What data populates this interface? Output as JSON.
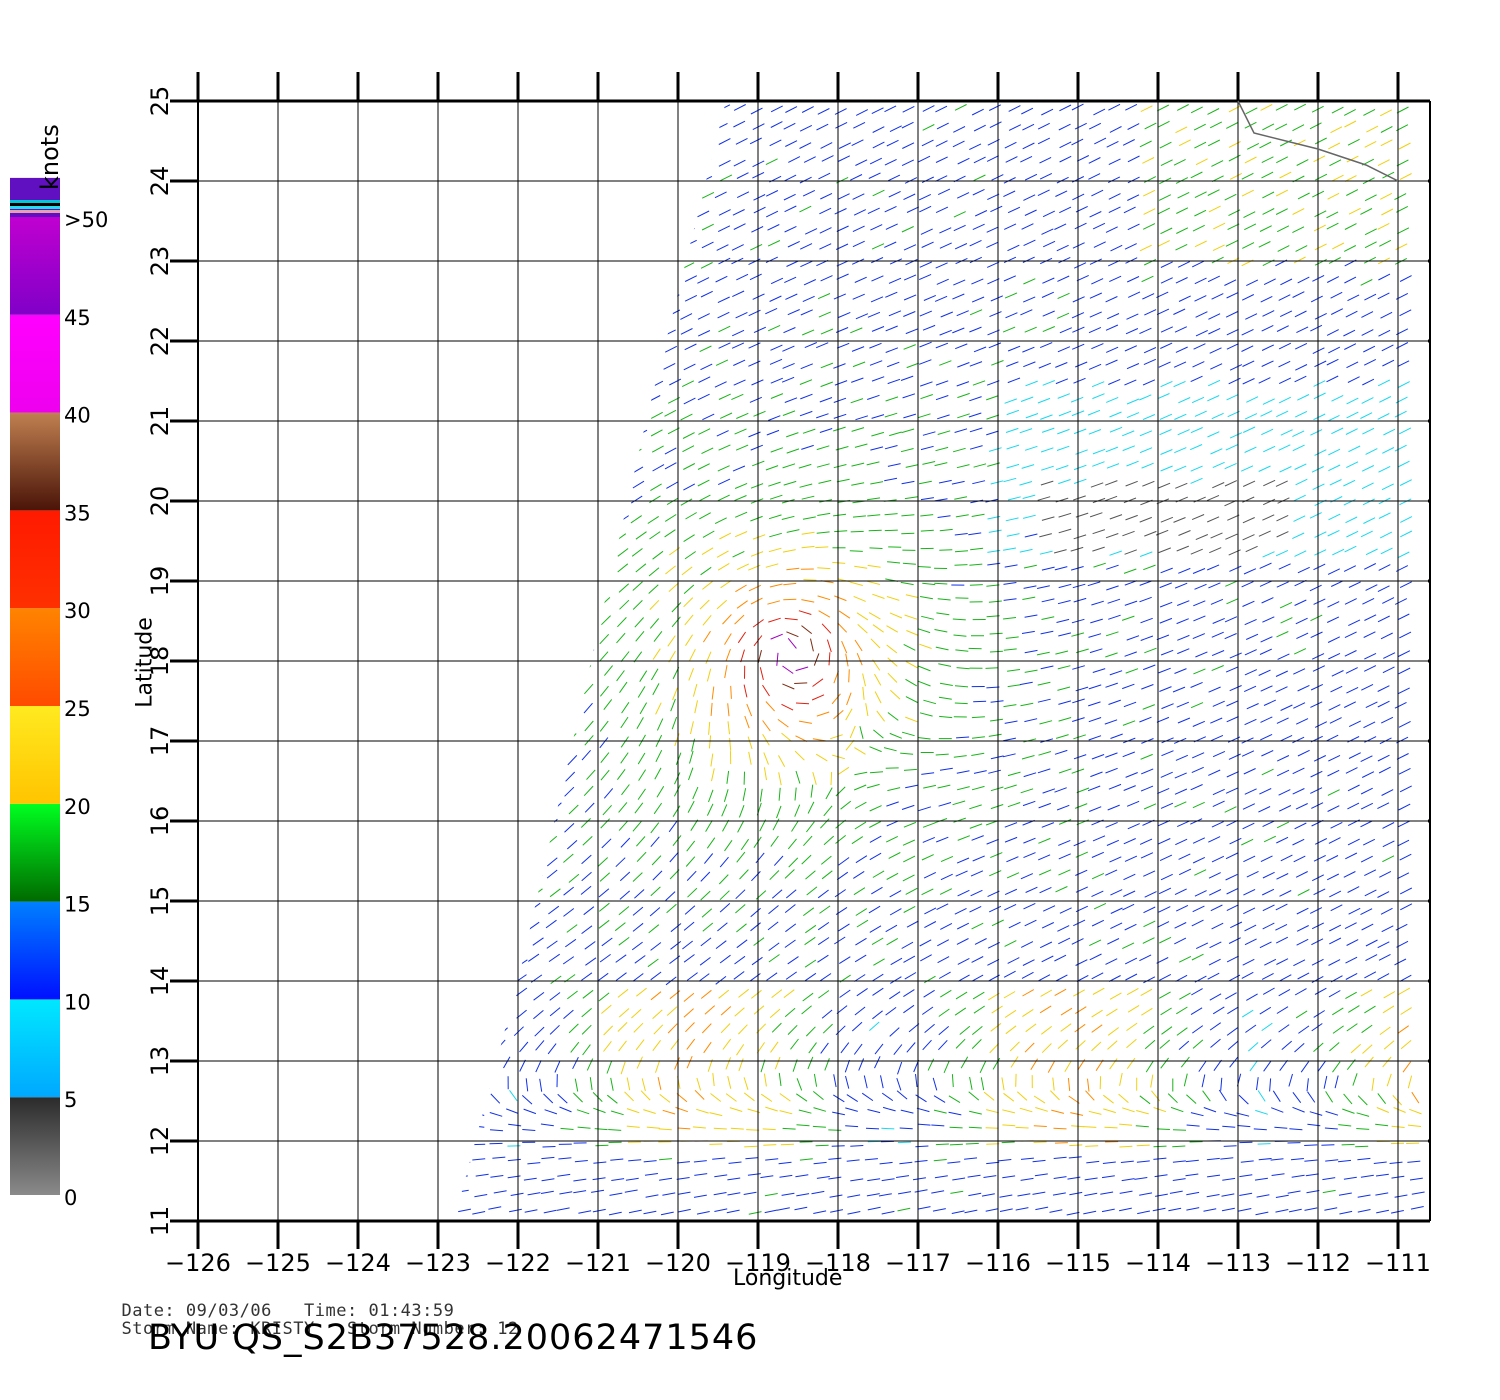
{
  "map": {
    "x_axis_label": "Longitude",
    "y_axis_label": "Latitude",
    "lon_ticks": [
      -126,
      -125,
      -124,
      -123,
      -122,
      -121,
      -120,
      -119,
      -118,
      -117,
      -116,
      -115,
      -114,
      -113,
      -112,
      -111
    ],
    "lat_ticks": [
      11,
      12,
      13,
      14,
      15,
      16,
      17,
      18,
      19,
      20,
      21,
      22,
      23,
      24,
      25
    ],
    "lon_range": [
      -126,
      -110.6
    ],
    "lat_range": [
      11,
      25
    ],
    "grid": true,
    "storm_center": {
      "lon": -118.6,
      "lat": 18.1
    },
    "swath_west_edge": [
      {
        "lon": -119.4,
        "lat": 25
      },
      {
        "lon": -120.4,
        "lat": 21
      },
      {
        "lon": -122.0,
        "lat": 14
      },
      {
        "lon": -122.8,
        "lat": 11
      }
    ],
    "coast_line": [
      {
        "lon": -113.0,
        "lat": 25
      },
      {
        "lon": -112.8,
        "lat": 24.6
      },
      {
        "lon": -112.0,
        "lat": 24.4
      },
      {
        "lon": -111.4,
        "lat": 24.2
      },
      {
        "lon": -111.0,
        "lat": 24.0
      }
    ]
  },
  "colorbar": {
    "unit_label": "knots",
    "labels": [
      {
        "text": ">50",
        "value": 50
      },
      {
        "text": "45",
        "value": 45
      },
      {
        "text": "40",
        "value": 40
      },
      {
        "text": "35",
        "value": 35
      },
      {
        "text": "30",
        "value": 30
      },
      {
        "text": "25",
        "value": 25
      },
      {
        "text": "20",
        "value": 20
      },
      {
        "text": "15",
        "value": 15
      },
      {
        "text": "10",
        "value": 10
      },
      {
        "text": "5",
        "value": 5
      },
      {
        "text": "0",
        "value": 0
      }
    ],
    "segments": [
      {
        "from": 0,
        "to": 5,
        "top": "#2b2b2b",
        "bottom": "#8a8a8a"
      },
      {
        "from": 5,
        "to": 10,
        "top": "#00e8ff",
        "bottom": "#00a8ff"
      },
      {
        "from": 10,
        "to": 15,
        "top": "#0080ff",
        "bottom": "#0010ff"
      },
      {
        "from": 15,
        "to": 20,
        "top": "#00ff20",
        "bottom": "#006a00"
      },
      {
        "from": 20,
        "to": 25,
        "top": "#ffea20",
        "bottom": "#ffc400"
      },
      {
        "from": 25,
        "to": 30,
        "top": "#ff8400",
        "bottom": "#ff4a00"
      },
      {
        "from": 30,
        "to": 35,
        "top": "#ff1a00",
        "bottom": "#ff3000"
      },
      {
        "from": 35,
        "to": 40,
        "top": "#c08050",
        "bottom": "#4a1408"
      },
      {
        "from": 40,
        "to": 45,
        "top": "#ff00ff",
        "bottom": "#ee00ee"
      },
      {
        "from": 45,
        "to": 50,
        "top": "#c000d0",
        "bottom": "#8000c8"
      },
      {
        "from": 50,
        "to": 52,
        "top": "#6010c0",
        "bottom": "#6010c0"
      }
    ]
  },
  "info": {
    "date_label": "Date:",
    "date": "09/03/06",
    "time_label": "Time:",
    "time": "01:43:59",
    "storm_name_label": "Storm Name:",
    "storm_name": "KRISTY",
    "storm_number_label": "Storm Number:",
    "storm_number": "12"
  },
  "title": {
    "prefix": "BYU",
    "file": "QS_S2B37528.20062471546"
  }
}
